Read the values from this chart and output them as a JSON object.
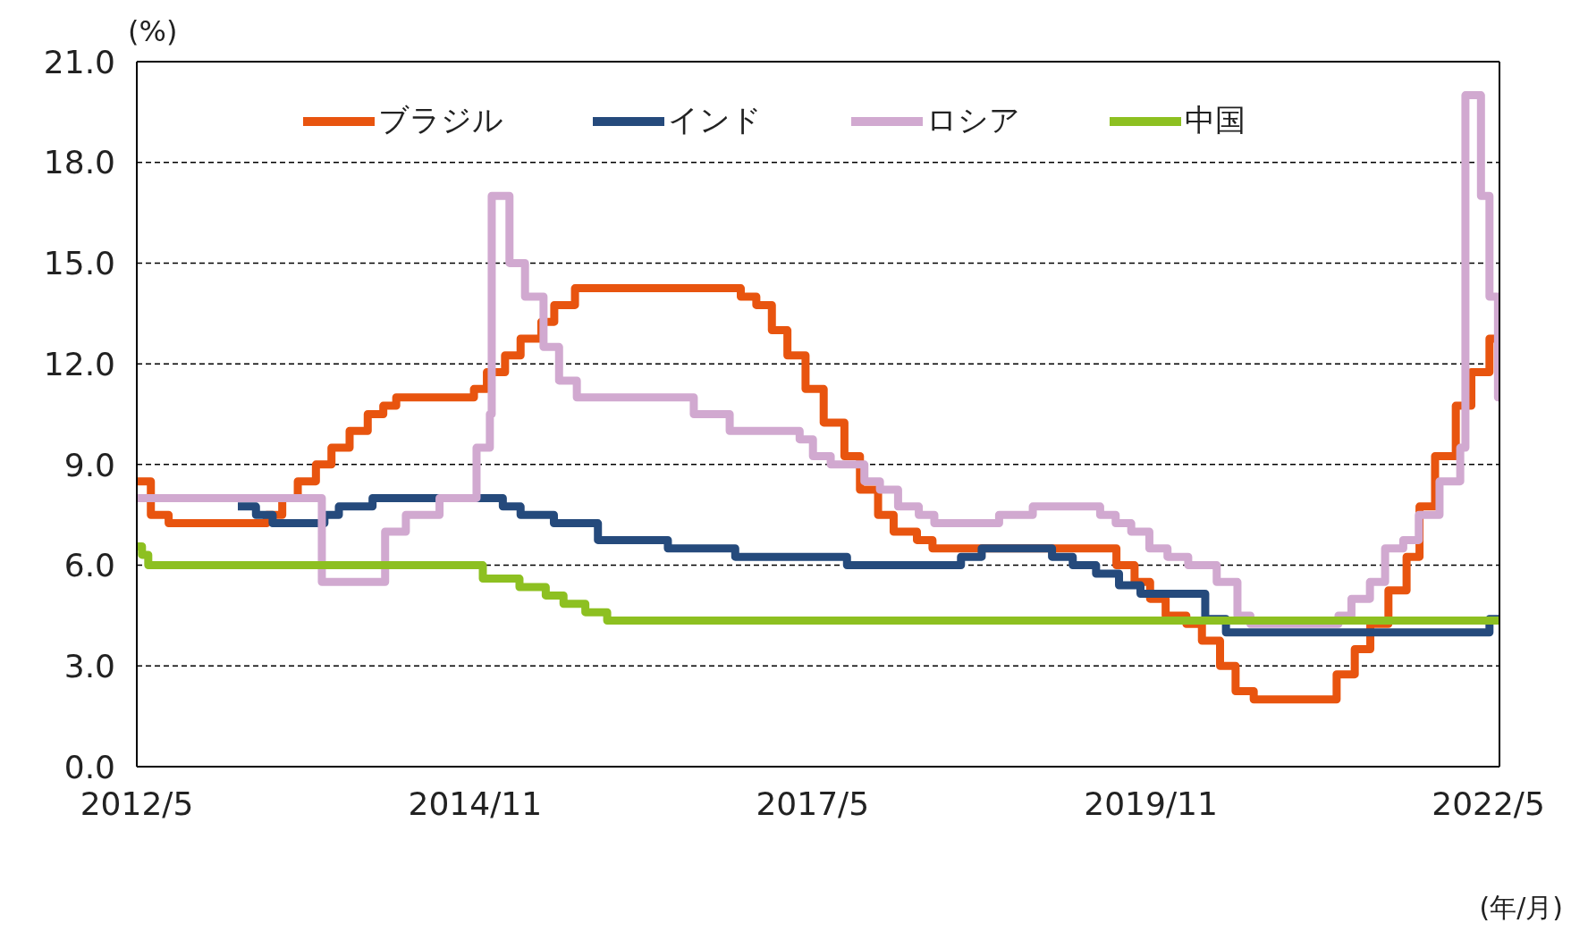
{
  "chart_data": {
    "type": "step",
    "ylabel": "(%)",
    "xlabel": "(年/月)",
    "xlim": [
      "2012-05-01",
      "2022-05-31"
    ],
    "xticks": [
      {
        "value": "2012-05-01",
        "label": "2012/5"
      },
      {
        "value": "2014-11-01",
        "label": "2014/11"
      },
      {
        "value": "2017-05-01",
        "label": "2017/5"
      },
      {
        "value": "2019-11-01",
        "label": "2019/11"
      },
      {
        "value": "2022-05-01",
        "label": "2022/5"
      }
    ],
    "ylim": [
      0,
      21
    ],
    "yticks": [
      {
        "value": 0,
        "label": "0.0"
      },
      {
        "value": 3,
        "label": "3.0"
      },
      {
        "value": 6,
        "label": "6.0"
      },
      {
        "value": 9,
        "label": "9.0"
      },
      {
        "value": 12,
        "label": "12.0"
      },
      {
        "value": 15,
        "label": "15.0"
      },
      {
        "value": 18,
        "label": "18.0"
      },
      {
        "value": 21,
        "label": "21.0"
      }
    ],
    "grid": "y",
    "legend": "top",
    "line_style": "solid",
    "marker": "none",
    "series": [
      {
        "name": "ブラジル",
        "color": "#e8540f",
        "x": [
          "2012-05-01",
          "2012-06-08",
          "2012-07-26",
          "2013-04-17",
          "2013-05-29",
          "2013-07-10",
          "2013-08-28",
          "2013-10-09",
          "2013-11-27",
          "2014-01-15",
          "2014-02-26",
          "2014-04-02",
          "2014-10-29",
          "2014-12-03",
          "2015-01-21",
          "2015-03-04",
          "2015-04-29",
          "2015-06-03",
          "2015-07-29",
          "2016-10-19",
          "2016-11-30",
          "2017-01-11",
          "2017-02-22",
          "2017-04-12",
          "2017-05-31",
          "2017-07-26",
          "2017-09-06",
          "2017-10-25",
          "2017-12-06",
          "2018-02-07",
          "2018-03-21",
          "2019-07-31",
          "2019-09-18",
          "2019-10-30",
          "2019-12-11",
          "2020-02-05",
          "2020-03-18",
          "2020-05-06",
          "2020-06-17",
          "2020-08-05",
          "2021-03-17",
          "2021-05-05",
          "2021-06-16",
          "2021-08-04",
          "2021-09-22",
          "2021-10-27",
          "2021-12-08",
          "2022-02-02",
          "2022-03-16",
          "2022-05-04",
          "2022-05-31"
        ],
        "values": [
          8.5,
          7.5,
          7.25,
          7.5,
          8.0,
          8.5,
          9.0,
          9.5,
          10.0,
          10.5,
          10.75,
          11.0,
          11.25,
          11.75,
          12.25,
          12.75,
          13.25,
          13.75,
          14.25,
          14.0,
          13.75,
          13.0,
          12.25,
          11.25,
          10.25,
          9.25,
          8.25,
          7.5,
          7.0,
          6.75,
          6.5,
          6.0,
          5.5,
          5.0,
          4.5,
          4.25,
          3.75,
          3.0,
          2.25,
          2.0,
          2.75,
          3.5,
          4.25,
          5.25,
          6.25,
          7.75,
          9.25,
          10.75,
          11.75,
          12.75,
          12.75
        ]
      },
      {
        "name": "インド",
        "color": "#254a7c",
        "x": [
          "2013-01-29",
          "2013-03-19",
          "2013-05-03",
          "2013-09-20",
          "2013-10-29",
          "2014-01-28",
          "2015-01-15",
          "2015-03-04",
          "2015-06-02",
          "2015-09-29",
          "2016-04-05",
          "2016-10-04",
          "2017-08-02",
          "2018-06-06",
          "2018-08-01",
          "2019-02-07",
          "2019-04-04",
          "2019-06-06",
          "2019-08-07",
          "2019-10-04",
          "2020-03-27",
          "2020-05-22",
          "2022-05-04",
          "2022-05-31"
        ],
        "values": [
          7.75,
          7.5,
          7.25,
          7.5,
          7.75,
          8.0,
          7.75,
          7.5,
          7.25,
          6.75,
          6.5,
          6.25,
          6.0,
          6.25,
          6.5,
          6.25,
          6.0,
          5.75,
          5.4,
          5.15,
          4.4,
          4.0,
          4.4,
          4.4
        ]
      },
      {
        "name": "ロシア",
        "color": "#d1a9d0",
        "x": [
          "2012-05-01",
          "2013-09-13",
          "2014-03-03",
          "2014-04-28",
          "2014-07-28",
          "2014-11-05",
          "2014-12-11",
          "2014-12-16",
          "2015-02-02",
          "2015-03-16",
          "2015-05-05",
          "2015-06-16",
          "2015-08-03",
          "2016-06-14",
          "2016-09-19",
          "2017-03-27",
          "2017-05-02",
          "2017-06-19",
          "2017-09-18",
          "2017-10-30",
          "2017-12-18",
          "2018-02-12",
          "2018-03-26",
          "2018-09-17",
          "2018-12-17",
          "2019-06-17",
          "2019-07-29",
          "2019-09-09",
          "2019-10-28",
          "2019-12-16",
          "2020-02-10",
          "2020-04-27",
          "2020-06-22",
          "2020-07-27",
          "2021-03-22",
          "2021-04-26",
          "2021-06-15",
          "2021-07-26",
          "2021-09-13",
          "2021-10-25",
          "2021-12-20",
          "2022-02-14",
          "2022-02-28",
          "2022-04-11",
          "2022-05-04",
          "2022-05-27",
          "2022-05-31"
        ],
        "values": [
          8.0,
          5.5,
          7.0,
          7.5,
          8.0,
          9.5,
          10.5,
          17.0,
          15.0,
          14.0,
          12.5,
          11.5,
          11.0,
          10.5,
          10.0,
          9.75,
          9.25,
          9.0,
          8.5,
          8.25,
          7.75,
          7.5,
          7.25,
          7.5,
          7.75,
          7.5,
          7.25,
          7.0,
          6.5,
          6.25,
          6.0,
          5.5,
          4.5,
          4.25,
          4.5,
          5.0,
          5.5,
          6.5,
          6.75,
          7.5,
          8.5,
          9.5,
          20.0,
          17.0,
          14.0,
          11.0,
          11.0
        ]
      },
      {
        "name": "中国",
        "color": "#8dc021",
        "x": [
          "2012-05-01",
          "2012-05-15",
          "2012-06-01",
          "2014-11-22",
          "2015-03-01",
          "2015-05-11",
          "2015-06-28",
          "2015-08-26",
          "2015-10-24",
          "2022-05-31"
        ],
        "values": [
          6.56,
          6.31,
          6.0,
          5.6,
          5.35,
          5.1,
          4.85,
          4.6,
          4.35,
          4.35
        ]
      }
    ]
  }
}
